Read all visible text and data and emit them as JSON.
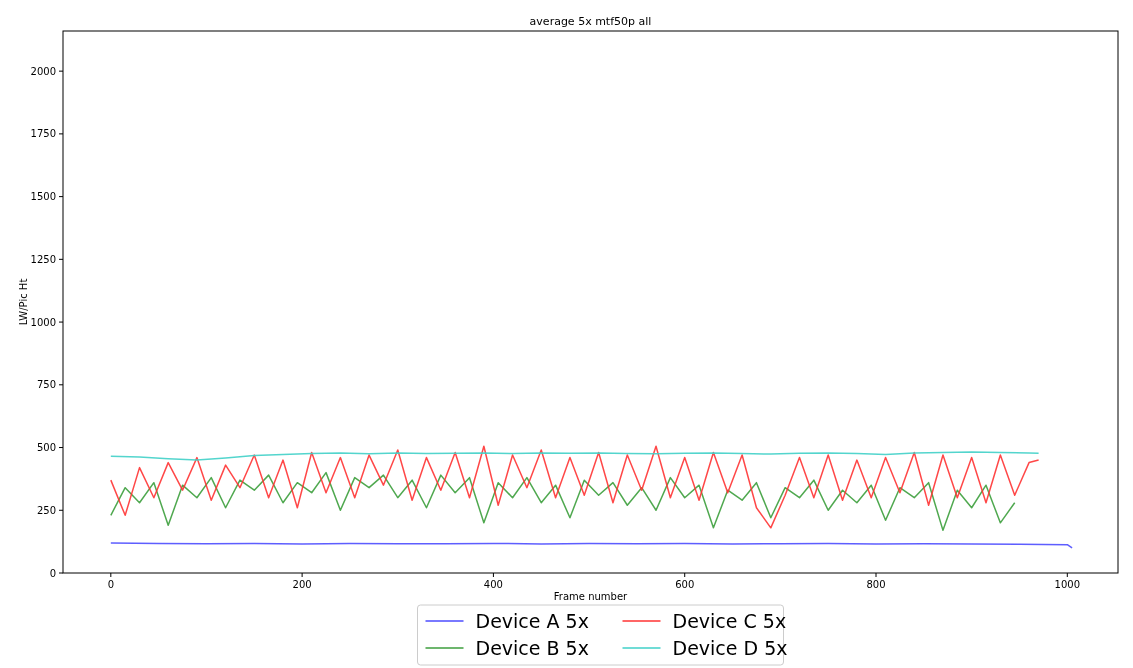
{
  "chart_data": {
    "type": "line",
    "title": "average 5x mtf50p all",
    "xlabel": "Frame number",
    "ylabel": "LW/Pic Ht",
    "xlim": [
      -50,
      1053
    ],
    "ylim": [
      0,
      2160
    ],
    "xticks": [
      0,
      200,
      400,
      600,
      800,
      1000
    ],
    "yticks": [
      0,
      250,
      500,
      750,
      1000,
      1250,
      1500,
      1750,
      2000
    ],
    "legend": "bottom",
    "grid": false,
    "series": [
      {
        "name": "Device A 5x",
        "color": "#4d4dff",
        "x": [
          0,
          50,
          100,
          150,
          200,
          250,
          300,
          350,
          400,
          450,
          500,
          550,
          600,
          650,
          700,
          750,
          800,
          850,
          900,
          950,
          1000,
          1005
        ],
        "values": [
          120,
          118,
          117,
          118,
          116,
          118,
          117,
          117,
          118,
          116,
          118,
          117,
          118,
          116,
          117,
          118,
          116,
          117,
          116,
          115,
          113,
          100
        ]
      },
      {
        "name": "Device B 5x",
        "color": "#3c9e3c",
        "x": [
          0,
          15,
          30,
          45,
          60,
          75,
          90,
          105,
          120,
          135,
          150,
          165,
          180,
          195,
          210,
          225,
          240,
          255,
          270,
          285,
          300,
          315,
          330,
          345,
          360,
          375,
          390,
          405,
          420,
          435,
          450,
          465,
          480,
          495,
          510,
          525,
          540,
          555,
          570,
          585,
          600,
          615,
          630,
          645,
          660,
          675,
          690,
          705,
          720,
          735,
          750,
          765,
          780,
          795,
          810,
          825,
          840,
          855,
          870,
          885,
          900,
          915,
          930,
          945
        ],
        "values": [
          230,
          340,
          280,
          360,
          190,
          350,
          300,
          380,
          260,
          370,
          330,
          390,
          280,
          360,
          320,
          400,
          250,
          380,
          340,
          390,
          300,
          370,
          260,
          390,
          320,
          380,
          200,
          360,
          300,
          380,
          280,
          350,
          220,
          370,
          310,
          360,
          270,
          340,
          250,
          380,
          300,
          350,
          180,
          330,
          290,
          360,
          220,
          340,
          300,
          370,
          250,
          330,
          280,
          350,
          210,
          340,
          300,
          360,
          170,
          330,
          260,
          350,
          200,
          280
        ]
      },
      {
        "name": "Device C 5x",
        "color": "#ff3333",
        "x": [
          0,
          15,
          30,
          45,
          60,
          75,
          90,
          105,
          120,
          135,
          150,
          165,
          180,
          195,
          210,
          225,
          240,
          255,
          270,
          285,
          300,
          315,
          330,
          345,
          360,
          375,
          390,
          405,
          420,
          435,
          450,
          465,
          480,
          495,
          510,
          525,
          540,
          555,
          570,
          585,
          600,
          615,
          630,
          645,
          660,
          675,
          690,
          705,
          720,
          735,
          750,
          765,
          780,
          795,
          810,
          825,
          840,
          855,
          870,
          885,
          900,
          915,
          930,
          945,
          960,
          970
        ],
        "values": [
          370,
          230,
          420,
          300,
          440,
          330,
          460,
          290,
          430,
          340,
          470,
          300,
          450,
          260,
          480,
          320,
          460,
          300,
          470,
          350,
          490,
          290,
          460,
          330,
          480,
          300,
          505,
          270,
          470,
          340,
          490,
          300,
          460,
          310,
          480,
          280,
          470,
          330,
          505,
          300,
          460,
          290,
          480,
          320,
          470,
          260,
          180,
          310,
          460,
          300,
          470,
          290,
          450,
          300,
          460,
          320,
          480,
          270,
          470,
          300,
          460,
          280,
          470,
          310,
          440,
          450
        ]
      },
      {
        "name": "Device D 5x",
        "color": "#40d0c8",
        "x": [
          0,
          30,
          60,
          90,
          120,
          150,
          180,
          210,
          240,
          270,
          300,
          330,
          360,
          390,
          420,
          450,
          480,
          510,
          540,
          570,
          600,
          630,
          660,
          690,
          720,
          750,
          780,
          810,
          840,
          870,
          900,
          930,
          960,
          970
        ],
        "values": [
          465,
          462,
          455,
          450,
          458,
          468,
          472,
          476,
          478,
          475,
          478,
          476,
          477,
          478,
          476,
          478,
          477,
          478,
          476,
          475,
          477,
          478,
          476,
          474,
          477,
          478,
          476,
          472,
          478,
          480,
          482,
          480,
          478,
          477
        ]
      }
    ]
  }
}
